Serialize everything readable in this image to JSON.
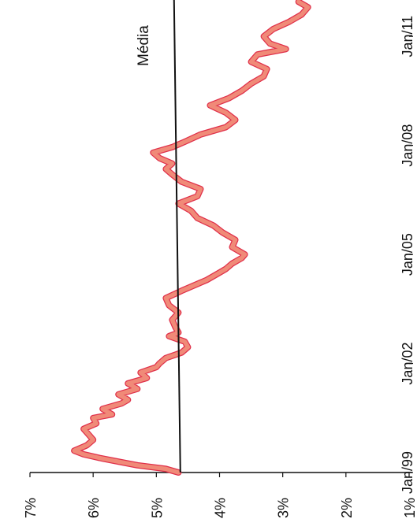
{
  "chart_data": {
    "type": "line",
    "orientation": "rotated-90-clockwise",
    "title": "",
    "xlabel": "",
    "ylabel": "",
    "x_ticks": [
      "Jan/99",
      "Jan/02",
      "Jan/05",
      "Jan/08",
      "Jan/11"
    ],
    "y_ticks": [
      "1%",
      "2%",
      "3%",
      "4%",
      "5%",
      "6%",
      "7%"
    ],
    "ylim": [
      1,
      7
    ],
    "xlim": [
      1999.0,
      2012.0
    ],
    "grid": false,
    "legend": "none",
    "annotation": "Média",
    "series": [
      {
        "color": "#f08a78",
        "edge_color": "#e0304a",
        "x": [
          1999.0,
          1999.1,
          1999.2,
          1999.3,
          1999.4,
          1999.5,
          1999.6,
          1999.75,
          1999.9,
          2000.0,
          2000.2,
          2000.35,
          2000.5,
          2000.6,
          2000.75,
          2000.9,
          2001.0,
          2001.15,
          2001.3,
          2001.45,
          2001.6,
          2001.75,
          2001.9,
          2002.0,
          2002.15,
          2002.3,
          2002.45,
          2002.6,
          2002.75,
          2002.85,
          2003.0,
          2003.2,
          2003.4,
          2003.6,
          2003.8,
          2004.0,
          2004.15,
          2004.3,
          2004.45,
          2004.6,
          2004.75,
          2004.9,
          2005.0,
          2005.2,
          2005.4,
          2005.6,
          2005.8,
          2006.0,
          2006.2,
          2006.4,
          2006.6,
          2006.8,
          2007.0,
          2007.2,
          2007.35,
          2007.5,
          2007.65,
          2007.8,
          2007.95,
          2008.1,
          2008.3,
          2008.5,
          2008.7,
          2008.9,
          2009.1,
          2009.3,
          2009.5,
          2009.7,
          2009.9,
          2010.1,
          2010.3,
          2010.5,
          2010.65,
          2010.8,
          2011.0,
          2011.2,
          2011.4,
          2011.6,
          2011.8,
          2011.95
        ],
        "y": [
          4.65,
          4.85,
          5.3,
          5.6,
          5.9,
          6.15,
          6.3,
          6.1,
          6.0,
          6.05,
          6.15,
          5.95,
          6.0,
          5.7,
          5.85,
          5.55,
          5.45,
          5.6,
          5.3,
          5.45,
          5.15,
          5.25,
          5.0,
          4.95,
          4.85,
          4.6,
          4.5,
          4.55,
          4.8,
          4.65,
          4.7,
          4.75,
          4.65,
          4.8,
          4.85,
          4.6,
          4.4,
          4.2,
          4.05,
          3.9,
          3.8,
          3.65,
          3.6,
          3.8,
          3.75,
          3.95,
          4.1,
          4.35,
          4.45,
          4.65,
          4.35,
          4.3,
          4.6,
          4.75,
          4.85,
          4.75,
          4.95,
          5.05,
          4.75,
          4.55,
          4.3,
          3.9,
          3.75,
          3.9,
          4.15,
          3.85,
          3.65,
          3.5,
          3.3,
          3.25,
          3.5,
          3.4,
          2.95,
          3.2,
          3.3,
          3.15,
          2.9,
          2.7,
          2.6,
          2.75
        ]
      },
      {
        "color": "#111111",
        "x": [
          1999.0,
          2012.0
        ],
        "y": [
          4.62,
          4.72
        ]
      }
    ]
  }
}
